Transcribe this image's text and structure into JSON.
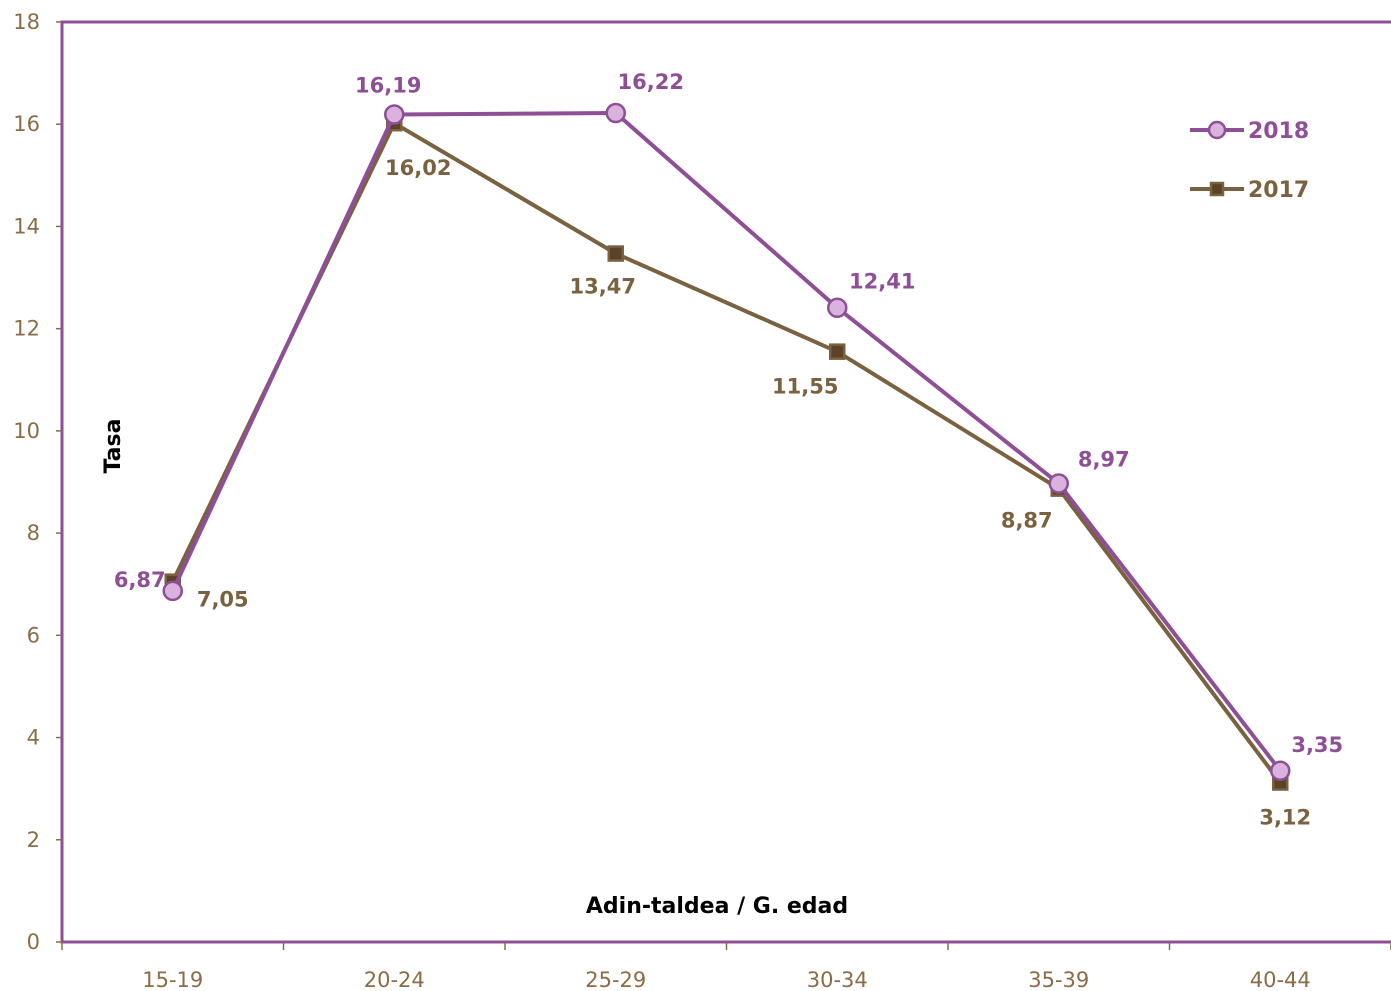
{
  "chart_data": {
    "type": "line",
    "categories": [
      "15-19",
      "20-24",
      "25-29",
      "30-34",
      "35-39",
      "40-44"
    ],
    "xlabel": "Adin-taldea / G. edad",
    "ylabel": "Tasa",
    "ylim": [
      0,
      18
    ],
    "yticks": [
      "0",
      "2",
      "4",
      "6",
      "8",
      "10",
      "12",
      "14",
      "16",
      "18"
    ],
    "grid": false,
    "legend_position": "top-right",
    "series": [
      {
        "name": "2018",
        "values": [
          6.87,
          16.19,
          16.22,
          12.41,
          8.97,
          3.35
        ],
        "labels": [
          "6,87",
          "16,19",
          "16,22",
          "12,41",
          "8,97",
          "3,35"
        ],
        "color": "#8e4f96",
        "marker": "circle",
        "marker_fill": "#d9b3dd"
      },
      {
        "name": "2017",
        "values": [
          7.05,
          16.02,
          13.47,
          11.55,
          8.87,
          3.12
        ],
        "labels": [
          "7,05",
          "16,02",
          "13,47",
          "11,55",
          "8,87",
          "3,12"
        ],
        "color": "#7a613f",
        "marker": "square",
        "marker_fill": "#5a4326"
      }
    ],
    "axis_color": "#8e4f96",
    "tick_color": "#8a6c47"
  }
}
